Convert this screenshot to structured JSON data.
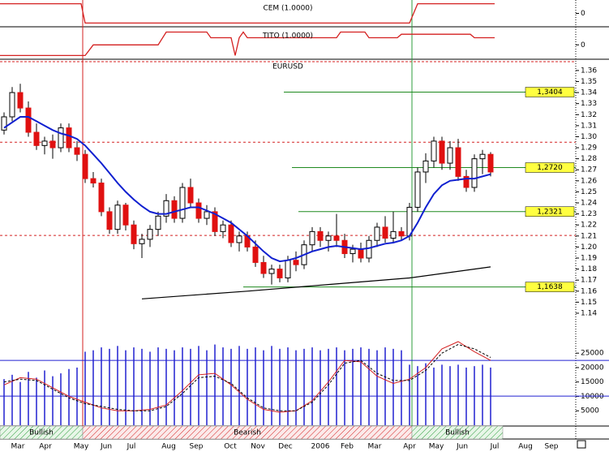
{
  "timeline": {
    "xlim": [
      -0.5,
      70.5
    ],
    "months": [
      {
        "label": "Mar",
        "at": 1.7
      },
      {
        "label": "Apr",
        "at": 5.1
      },
      {
        "label": "May",
        "at": 9.5
      },
      {
        "label": "Jun",
        "at": 12.6
      },
      {
        "label": "Jul",
        "at": 15.7
      },
      {
        "label": "Aug",
        "at": 20.3
      },
      {
        "label": "Sep",
        "at": 23.7
      },
      {
        "label": "Oct",
        "at": 27.9
      },
      {
        "label": "Nov",
        "at": 31.3
      },
      {
        "label": "Dec",
        "at": 34.7
      },
      {
        "label": "2006",
        "at": 39
      },
      {
        "label": "Feb",
        "at": 42.3
      },
      {
        "label": "Mar",
        "at": 45.7
      },
      {
        "label": "Apr",
        "at": 50
      },
      {
        "label": "May",
        "at": 53.3
      },
      {
        "label": "Jun",
        "at": 56.5
      },
      {
        "label": "Jul",
        "at": 60.5
      },
      {
        "label": "Aug",
        "at": 64.3
      },
      {
        "label": "Sep",
        "at": 67.5
      }
    ],
    "regimes": [
      {
        "label": "Bullish",
        "start": -0.5,
        "end": 9.7,
        "color": "#2e9e3e"
      },
      {
        "label": "Bearish",
        "start": 9.7,
        "end": 50.3,
        "color": "#d42020"
      },
      {
        "label": "Bullish",
        "start": 50.3,
        "end": 61.5,
        "color": "#2e9e3e"
      }
    ]
  },
  "chart_data": [
    {
      "type": "step",
      "title": "CEM (1.0000)",
      "color": "#d42020",
      "ylim": [
        -1.1,
        1.1
      ],
      "yticks": [
        0
      ],
      "x": [
        -0.5,
        9.5,
        10,
        50,
        51,
        60.5
      ],
      "values": [
        0.9,
        0.9,
        -0.9,
        -0.9,
        0.9,
        0.9
      ]
    },
    {
      "type": "step",
      "title": "TITO (1.0000)",
      "color": "#d42020",
      "ylim": [
        -1.2,
        1.47
      ],
      "yticks": [
        0
      ],
      "x": [
        -0.5,
        10,
        11,
        19,
        20,
        25,
        25.5,
        28,
        28.5,
        29,
        29.5,
        30,
        41,
        41.5,
        44.5,
        45,
        48.5,
        49,
        57.5,
        58,
        60.5
      ],
      "values": [
        -1,
        -1,
        0,
        0,
        1.2,
        1.2,
        0.67,
        0.67,
        -1,
        0.67,
        1.2,
        0.67,
        0.67,
        1.2,
        1.2,
        0.67,
        0.67,
        1.0,
        1.0,
        0.67,
        0.67
      ]
    },
    {
      "type": "candlestick",
      "title": "EURUSD",
      "ylim": [
        1.126,
        1.368
      ],
      "yticks": [
        1.36,
        1.35,
        1.34,
        1.33,
        1.32,
        1.31,
        {
          "value": 1.3,
          "label": "1.30"
        },
        1.29,
        1.28,
        1.27,
        1.26,
        1.25,
        1.24,
        1.23,
        1.22,
        1.21,
        {
          "value": 1.2,
          "label": "1.20"
        },
        1.19,
        1.18,
        1.17,
        1.16,
        1.15,
        1.14
      ],
      "up_color": "#ffffff",
      "down_color": "#e01010",
      "open": [
        1.306,
        1.318,
        1.34,
        1.326,
        1.304,
        1.292,
        1.296,
        1.29,
        1.308,
        1.29,
        1.284,
        1.262,
        1.258,
        1.232,
        1.216,
        1.238,
        1.22,
        1.203,
        1.207,
        1.216,
        1.228,
        1.242,
        1.226,
        1.254,
        1.24,
        1.226,
        1.232,
        1.214,
        1.22,
        1.204,
        1.21,
        1.2,
        1.186,
        1.176,
        1.18,
        1.172,
        1.188,
        1.184,
        1.202,
        1.214,
        1.206,
        1.21,
        1.206,
        1.194,
        1.198,
        1.19,
        1.206,
        1.218,
        1.208,
        1.214,
        1.21,
        1.236,
        1.268,
        1.278,
        1.296,
        1.276,
        1.29,
        1.264,
        1.254,
        1.28,
        1.284
      ],
      "high": [
        1.322,
        1.345,
        1.348,
        1.332,
        1.312,
        1.3,
        1.302,
        1.312,
        1.312,
        1.296,
        1.288,
        1.268,
        1.262,
        1.236,
        1.242,
        1.24,
        1.224,
        1.212,
        1.22,
        1.232,
        1.248,
        1.246,
        1.258,
        1.262,
        1.244,
        1.238,
        1.236,
        1.224,
        1.224,
        1.214,
        1.214,
        1.206,
        1.192,
        1.184,
        1.184,
        1.192,
        1.196,
        1.206,
        1.218,
        1.218,
        1.214,
        1.23,
        1.212,
        1.202,
        1.204,
        1.21,
        1.222,
        1.228,
        1.232,
        1.218,
        1.24,
        1.272,
        1.285,
        1.3,
        1.3,
        1.296,
        1.298,
        1.27,
        1.284,
        1.288,
        1.286
      ],
      "low": [
        1.302,
        1.314,
        1.322,
        1.3,
        1.288,
        1.284,
        1.28,
        1.286,
        1.286,
        1.278,
        1.258,
        1.254,
        1.228,
        1.212,
        1.212,
        1.215,
        1.198,
        1.19,
        1.2,
        1.21,
        1.222,
        1.222,
        1.222,
        1.236,
        1.222,
        1.22,
        1.21,
        1.208,
        1.2,
        1.196,
        1.196,
        1.182,
        1.172,
        1.166,
        1.168,
        1.168,
        1.178,
        1.18,
        1.196,
        1.2,
        1.196,
        1.2,
        1.19,
        1.186,
        1.186,
        1.186,
        1.2,
        1.204,
        1.204,
        1.206,
        1.206,
        1.232,
        1.258,
        1.272,
        1.27,
        1.27,
        1.26,
        1.25,
        1.25,
        1.266,
        1.264
      ],
      "close": [
        1.318,
        1.34,
        1.326,
        1.304,
        1.292,
        1.296,
        1.29,
        1.308,
        1.29,
        1.284,
        1.262,
        1.258,
        1.232,
        1.216,
        1.238,
        1.22,
        1.203,
        1.207,
        1.216,
        1.228,
        1.242,
        1.226,
        1.254,
        1.24,
        1.226,
        1.232,
        1.214,
        1.22,
        1.204,
        1.21,
        1.2,
        1.186,
        1.176,
        1.18,
        1.172,
        1.188,
        1.184,
        1.202,
        1.214,
        1.206,
        1.21,
        1.206,
        1.194,
        1.198,
        1.19,
        1.206,
        1.218,
        1.208,
        1.214,
        1.21,
        1.236,
        1.268,
        1.278,
        1.296,
        1.276,
        1.29,
        1.264,
        1.254,
        1.28,
        1.284,
        1.268
      ],
      "ma": {
        "color": "#1020d0",
        "values": [
          1.308,
          1.313,
          1.318,
          1.318,
          1.314,
          1.31,
          1.306,
          1.303,
          1.301,
          1.298,
          1.292,
          1.284,
          1.276,
          1.267,
          1.258,
          1.25,
          1.243,
          1.237,
          1.232,
          1.23,
          1.23,
          1.232,
          1.234,
          1.236,
          1.236,
          1.233,
          1.23,
          1.226,
          1.222,
          1.216,
          1.21,
          1.203,
          1.196,
          1.19,
          1.187,
          1.188,
          1.19,
          1.193,
          1.196,
          1.198,
          1.2,
          1.201,
          1.2,
          1.199,
          1.198,
          1.199,
          1.201,
          1.203,
          1.204,
          1.206,
          1.21,
          1.222,
          1.236,
          1.248,
          1.256,
          1.26,
          1.261,
          1.262,
          1.262,
          1.264,
          1.266
        ]
      },
      "long_ma": {
        "color": "#000000",
        "x": [
          17,
          30,
          40,
          50,
          60
        ],
        "values": [
          1.153,
          1.16,
          1.166,
          1.172,
          1.182
        ]
      },
      "dashed_levels": {
        "color": "#d42020",
        "values": [
          1.295,
          1.2105
        ]
      },
      "levels": [
        {
          "value": 1.3404,
          "label": "1,3404",
          "from": 34.5
        },
        {
          "value": 1.272,
          "label": "1,2720",
          "from": 35.5
        },
        {
          "value": 1.2321,
          "label": "1,2321",
          "from": 36.3
        },
        {
          "value": 1.1638,
          "label": "1,1638",
          "from": 29.5
        }
      ],
      "level_color": "#1f8a1f",
      "level_label_color": "#ffff40"
    },
    {
      "type": "bar",
      "color": "#2020d0",
      "ylim": [
        0,
        33500
      ],
      "yticks": [
        25000,
        20000,
        15000,
        10000,
        5000
      ],
      "values": [
        16000,
        17500,
        15000,
        18500,
        16500,
        19000,
        17000,
        18000,
        19500,
        20000,
        25500,
        26000,
        27000,
        26500,
        27500,
        26000,
        27000,
        26500,
        25500,
        27000,
        26500,
        26000,
        27000,
        26500,
        27500,
        26000,
        28000,
        27000,
        26500,
        27500,
        26500,
        27000,
        26000,
        27500,
        26500,
        27000,
        26000,
        26500,
        27000,
        26000,
        26500,
        27000,
        26000,
        26500,
        27000,
        26500,
        26000,
        27000,
        26500,
        26000,
        21000,
        20500,
        21500,
        20000,
        21000,
        20500,
        21000,
        20000,
        20500,
        21000,
        20000
      ],
      "levels": [
        22500,
        10100
      ],
      "lines": {
        "x": [
          0,
          2,
          4,
          6,
          8,
          10,
          12,
          14,
          16,
          18,
          20,
          22,
          24,
          26,
          28,
          30,
          32,
          34,
          36,
          38,
          40,
          42,
          44,
          46,
          48,
          50,
          52,
          54,
          56,
          58,
          60
        ],
        "series": [
          {
            "color": "#d42020",
            "dashed": false,
            "values": [
              14000,
              16500,
              16000,
              13000,
              10000,
              8000,
              6000,
              5000,
              5000,
              5500,
              7000,
              12000,
              17500,
              18000,
              14000,
              9000,
              5500,
              4500,
              5000,
              8500,
              15000,
              22500,
              22000,
              17000,
              14500,
              16000,
              20000,
              26500,
              29000,
              25500,
              22500
            ]
          },
          {
            "color": "#000000",
            "dashed": true,
            "values": [
              15000,
              16000,
              15500,
              12500,
              9500,
              7500,
              6500,
              5500,
              5000,
              5000,
              6500,
              11000,
              16500,
              17000,
              14500,
              9500,
              6000,
              5000,
              5000,
              8000,
              14000,
              21500,
              22500,
              18000,
              15500,
              15500,
              19000,
              25000,
              28000,
              26500,
              23500
            ]
          }
        ]
      }
    }
  ]
}
